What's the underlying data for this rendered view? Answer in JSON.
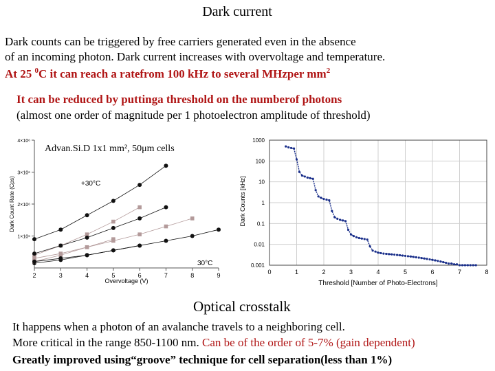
{
  "title": "Dark current",
  "intro": {
    "line1": "Dark counts can be triggered by free carriers generated even in the absence",
    "line2": "of an incoming photon.  Dark current increases with overvoltage and temperature.",
    "line3_a": "At 25 ",
    "line3_sup": "0",
    "line3_b": "C it can reach a ratefrom 100 kHz to several MHzper mm",
    "line3_sup2": "2"
  },
  "threshold": {
    "line1": "It can be reduced by puttinga threshold on the numberof photons",
    "line2": "(almost one order of magnitude per 1 photoelectron amplitude of threshold)"
  },
  "crosstalk": {
    "title": "Optical crosstalk",
    "line1": "It happens when a photon of an avalanche travels to a neighboring cell.",
    "line2_a": "More critical in the range 850-1100 nm. ",
    "line2_b": "Can be of the order of 5-7% (gain dependent)",
    "line3": "Greatly improved using“groove” technique for cell separation(less than 1%)"
  },
  "chart_data": [
    {
      "type": "scatter",
      "title": "Advan.Si.D 1x1 mm², 50μm cells",
      "xlabel": "Overvoltage (V)",
      "ylabel": "Dark Count Rate (Cps)",
      "x_ticks": [
        "2",
        "3",
        "4",
        "5",
        "6",
        "7",
        "8",
        "9"
      ],
      "y_ticks": [
        "1×10⁶",
        "2×10⁶",
        "3×10⁶",
        "4×10⁶"
      ],
      "xlim": [
        2,
        9
      ],
      "ylim": [
        0,
        4000000
      ],
      "annotations": [
        "+30°C",
        "30°C"
      ],
      "series": [
        {
          "marker": "circle",
          "x": [
            2,
            3,
            4,
            5,
            6
          ],
          "y": [
            150000,
            250000,
            400000,
            550000,
            700000
          ]
        },
        {
          "marker": "square",
          "x": [
            2,
            3,
            4,
            5
          ],
          "y": [
            200000,
            400000,
            650000,
            900000
          ]
        },
        {
          "marker": "circle",
          "x": [
            2,
            3,
            4,
            5,
            6,
            7
          ],
          "y": [
            900000,
            1200000,
            1650000,
            2100000,
            2600000,
            3200000
          ]
        },
        {
          "marker": "square",
          "x": [
            2,
            3,
            4,
            5,
            6
          ],
          "y": [
            400000,
            700000,
            1050000,
            1450000,
            1900000
          ]
        },
        {
          "marker": "circle",
          "x": [
            2,
            3,
            4,
            5,
            6,
            7
          ],
          "y": [
            450000,
            700000,
            950000,
            1250000,
            1550000,
            1900000
          ]
        },
        {
          "marker": "square",
          "x": [
            2,
            3,
            4,
            5,
            6,
            7,
            8
          ],
          "y": [
            300000,
            450000,
            650000,
            850000,
            1050000,
            1300000,
            1550000
          ]
        },
        {
          "marker": "circle",
          "x": [
            2,
            3,
            4,
            5,
            6,
            7,
            8,
            9
          ],
          "y": [
            200000,
            300000,
            400000,
            550000,
            700000,
            850000,
            1000000,
            1200000
          ]
        }
      ]
    },
    {
      "type": "scatter",
      "xlabel": "Threshold [Number of Photo-Electrons]",
      "ylabel": "Dark Counts [kHz]",
      "x_ticks": [
        "0",
        "1",
        "2",
        "3",
        "4",
        "5",
        "6",
        "7",
        "8"
      ],
      "y_ticks": [
        "0.001",
        "0.01",
        "0.1",
        "1",
        "10",
        "100",
        "1000"
      ],
      "xlim": [
        0,
        8
      ],
      "ylim": [
        0.001,
        1000
      ],
      "yscale": "log",
      "grid": true,
      "series": [
        {
          "x": [
            0.6,
            0.7,
            0.8,
            0.9,
            1.0,
            1.1,
            1.2,
            1.3,
            1.4,
            1.5,
            1.6,
            1.7,
            1.8,
            1.9,
            2.0,
            2.1,
            2.2,
            2.3,
            2.4,
            2.5,
            2.6,
            2.7,
            2.8,
            2.9,
            3.0,
            3.1,
            3.2,
            3.3,
            3.4,
            3.5,
            3.6,
            3.7,
            3.8,
            3.9,
            4.0,
            4.1,
            4.2,
            4.3,
            4.4,
            4.5,
            4.6,
            4.7,
            4.8,
            4.9,
            5.0,
            5.1,
            5.2,
            5.3,
            5.4,
            5.5,
            5.6,
            5.7,
            5.8,
            5.9,
            6.0,
            6.1,
            6.2,
            6.3,
            6.4,
            6.5,
            6.6,
            6.7,
            6.8,
            6.9,
            7.0,
            7.1,
            7.2,
            7.3,
            7.4,
            7.5,
            7.6
          ],
          "y": [
            500,
            450,
            420,
            400,
            120,
            30,
            20,
            18,
            16,
            15,
            14,
            4,
            2,
            1.7,
            1.5,
            1.4,
            1.3,
            0.4,
            0.2,
            0.17,
            0.15,
            0.14,
            0.13,
            0.05,
            0.03,
            0.025,
            0.022,
            0.02,
            0.019,
            0.018,
            0.017,
            0.008,
            0.005,
            0.0045,
            0.004,
            0.0038,
            0.0036,
            0.0035,
            0.0034,
            0.0033,
            0.0032,
            0.0031,
            0.003,
            0.0029,
            0.0028,
            0.0027,
            0.0026,
            0.0025,
            0.0024,
            0.0023,
            0.0022,
            0.0021,
            0.002,
            0.0019,
            0.0018,
            0.0017,
            0.0016,
            0.0015,
            0.0014,
            0.0013,
            0.0012,
            0.0012,
            0.0011,
            0.0011,
            0.001,
            0.001,
            0.001,
            0.001,
            0.001,
            0.001,
            0.001
          ]
        }
      ]
    }
  ]
}
